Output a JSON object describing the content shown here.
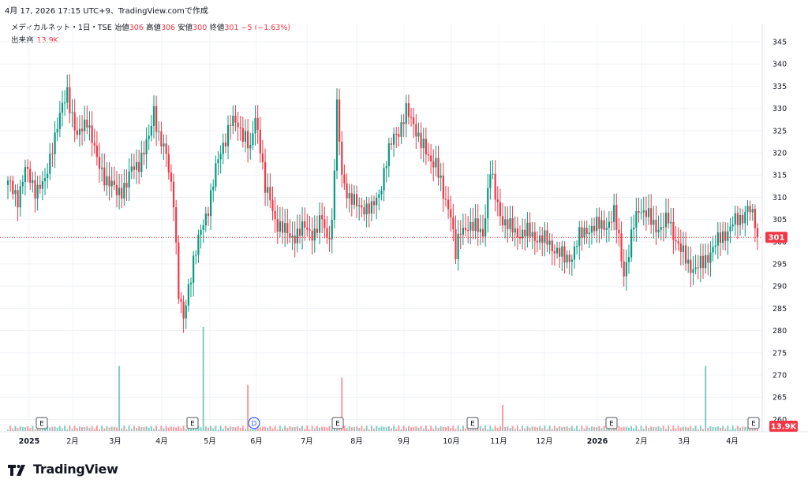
{
  "header": {
    "timestamp": "4月 17, 2026 17:15 UTC+9、TradingView.comで作成"
  },
  "legend": {
    "symbol": "メディカルネット・1日・TSE",
    "open_label": "始値",
    "open": "306",
    "high_label": "高値",
    "high": "306",
    "low_label": "安値",
    "low": "300",
    "close_label": "終値",
    "close": "301",
    "change": "−5 (−1.63%)"
  },
  "volume": {
    "label": "出来高",
    "value": "13.9K"
  },
  "logo": {
    "text": "TradingView"
  },
  "colors": {
    "up": "#089981",
    "down": "#f23645",
    "grid": "#f0f3fa",
    "axis_text": "#131722"
  },
  "chart_data": {
    "type": "candlestick",
    "yaxis": {
      "ticks": [
        260,
        265,
        270,
        275,
        280,
        285,
        290,
        295,
        300,
        305,
        310,
        315,
        320,
        325,
        330,
        335,
        340,
        345
      ],
      "ylim": [
        258,
        347
      ]
    },
    "xaxis": {
      "ticks": [
        "2025",
        "2月",
        "3月",
        "4月",
        "5月",
        "6月",
        "7月",
        "8月",
        "9月",
        "10月",
        "11月",
        "12月",
        "2026",
        "2月",
        "3月",
        "4月"
      ]
    },
    "last_price": 301,
    "last_price_label": "301",
    "last_volume_label": "13.9K",
    "events": [
      "E",
      "E",
      "D",
      "E",
      "E",
      "E",
      "E",
      "E"
    ],
    "close_path": [
      [
        0,
        313
      ],
      [
        4,
        310
      ],
      [
        7,
        316
      ],
      [
        11,
        312
      ],
      [
        15,
        313
      ],
      [
        18,
        322
      ],
      [
        22,
        330
      ],
      [
        24,
        334
      ],
      [
        28,
        323
      ],
      [
        32,
        328
      ],
      [
        36,
        318
      ],
      [
        40,
        314
      ],
      [
        44,
        311
      ],
      [
        48,
        313
      ],
      [
        50,
        316
      ],
      [
        53,
        318
      ],
      [
        57,
        323
      ],
      [
        59,
        330
      ],
      [
        61,
        324
      ],
      [
        64,
        319
      ],
      [
        67,
        310
      ],
      [
        69,
        288
      ],
      [
        71,
        282
      ],
      [
        73,
        290
      ],
      [
        75,
        296
      ],
      [
        78,
        302
      ],
      [
        81,
        308
      ],
      [
        84,
        316
      ],
      [
        87,
        322
      ],
      [
        90,
        327
      ],
      [
        93,
        326
      ],
      [
        96,
        324
      ],
      [
        98,
        320
      ],
      [
        100,
        328
      ],
      [
        102,
        322
      ],
      [
        104,
        312
      ],
      [
        106,
        309
      ],
      [
        108,
        305
      ],
      [
        111,
        303
      ],
      [
        114,
        301
      ],
      [
        117,
        302
      ],
      [
        120,
        303
      ],
      [
        124,
        302
      ],
      [
        127,
        305
      ],
      [
        129,
        301
      ],
      [
        131,
        304
      ],
      [
        133,
        330
      ],
      [
        135,
        315
      ],
      [
        138,
        310
      ],
      [
        141,
        308
      ],
      [
        144,
        308
      ],
      [
        147,
        307
      ],
      [
        150,
        311
      ],
      [
        153,
        318
      ],
      [
        156,
        324
      ],
      [
        159,
        326
      ],
      [
        161,
        329
      ],
      [
        164,
        327
      ],
      [
        167,
        322
      ],
      [
        170,
        319
      ],
      [
        173,
        318
      ],
      [
        176,
        310
      ],
      [
        179,
        307
      ],
      [
        181,
        297
      ],
      [
        183,
        302
      ],
      [
        186,
        304
      ],
      [
        189,
        303
      ],
      [
        192,
        302
      ],
      [
        195,
        316
      ],
      [
        197,
        310
      ],
      [
        200,
        305
      ],
      [
        203,
        303
      ],
      [
        206,
        302
      ],
      [
        210,
        302
      ],
      [
        214,
        301
      ],
      [
        218,
        300
      ],
      [
        222,
        298
      ],
      [
        225,
        296
      ],
      [
        228,
        297
      ],
      [
        231,
        301
      ],
      [
        234,
        303
      ],
      [
        237,
        303
      ],
      [
        240,
        304
      ],
      [
        243,
        304
      ],
      [
        245,
        306
      ],
      [
        247,
        301
      ],
      [
        249,
        293
      ],
      [
        251,
        297
      ],
      [
        253,
        304
      ],
      [
        255,
        308
      ],
      [
        258,
        306
      ],
      [
        261,
        304
      ],
      [
        264,
        303
      ],
      [
        267,
        305
      ],
      [
        269,
        302
      ],
      [
        272,
        298
      ],
      [
        275,
        295
      ],
      [
        278,
        294
      ],
      [
        281,
        295
      ],
      [
        284,
        298
      ],
      [
        287,
        300
      ],
      [
        290,
        302
      ],
      [
        293,
        304
      ],
      [
        296,
        305
      ],
      [
        299,
        308
      ],
      [
        302,
        304
      ],
      [
        303,
        302
      ]
    ],
    "volume_spikes": [
      [
        45,
        0.55
      ],
      [
        79,
        0.88
      ],
      [
        97,
        0.39
      ],
      [
        135,
        0.45
      ],
      [
        200,
        0.22
      ],
      [
        282,
        0.55
      ]
    ]
  }
}
